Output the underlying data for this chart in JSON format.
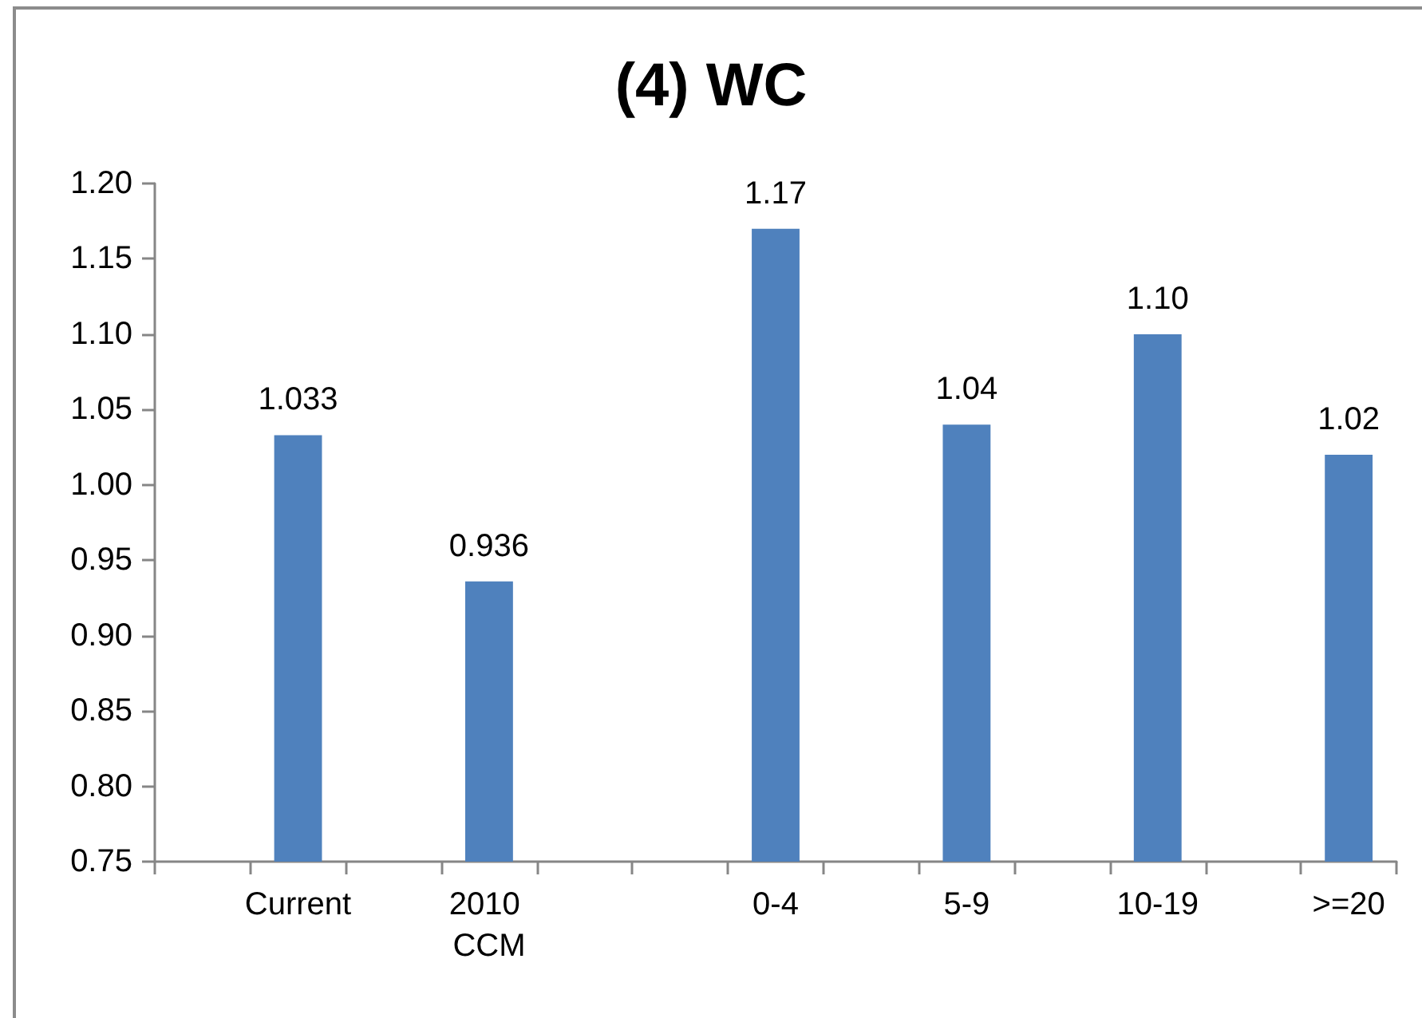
{
  "chart_data": {
    "type": "bar",
    "title": "(4) WC",
    "categories": [
      null,
      "Current",
      null,
      "2010 CCM",
      null,
      null,
      "0-4",
      null,
      "5-9",
      null,
      "10-19",
      null,
      ">=20"
    ],
    "values": [
      null,
      1.033,
      null,
      0.936,
      null,
      null,
      1.17,
      null,
      1.04,
      null,
      1.1,
      null,
      1.02
    ],
    "value_labels": [
      null,
      "1.033",
      null,
      "0.936",
      null,
      null,
      "1.17",
      null,
      "1.04",
      null,
      "1.10",
      null,
      "1.02"
    ],
    "color": "#4f81bd",
    "ylim": [
      0.75,
      1.2
    ],
    "yticks": [
      0.75,
      {
        "value": 0.8,
        "label": "0.80"
      },
      0.85,
      {
        "value": 0.9,
        "label": "0.90"
      },
      0.95,
      {
        "value": 1.0,
        "label": "1.00"
      },
      1.05,
      {
        "value": 1.1,
        "label": "1.10"
      },
      1.15,
      {
        "value": 1.2,
        "label": "1.20"
      }
    ],
    "grid": false
  }
}
